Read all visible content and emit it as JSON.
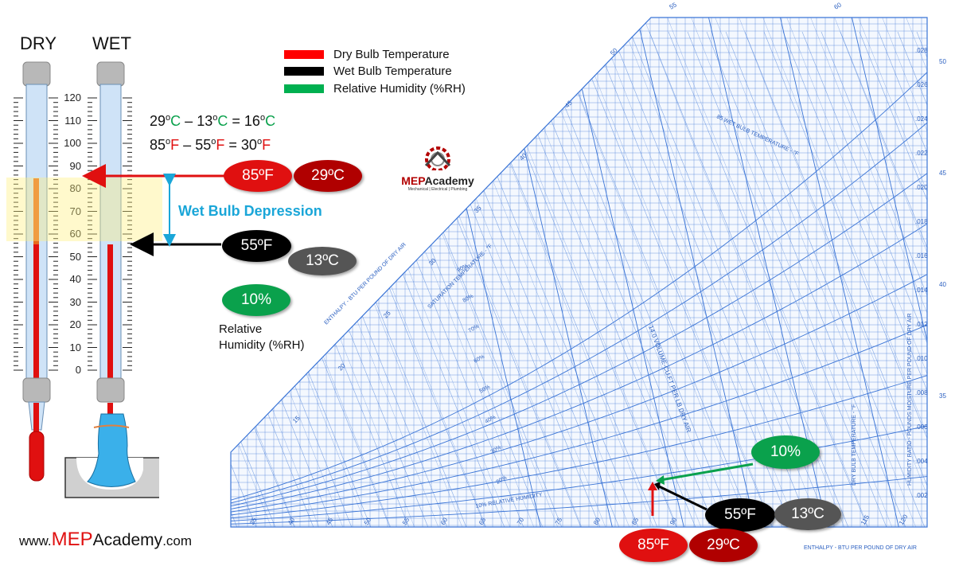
{
  "thermometers": {
    "dry_label": "DRY",
    "wet_label": "WET",
    "scale": [
      "120",
      "110",
      "100",
      "90",
      "80",
      "70",
      "60",
      "50",
      "40",
      "30",
      "20",
      "10",
      "0"
    ],
    "dry_reading_f": 85,
    "wet_reading_f": 55
  },
  "legend": {
    "dry": {
      "label": "Dry Bulb Temperature",
      "color": "#ff0000"
    },
    "wet": {
      "label": "Wet Bulb Temperature",
      "color": "#000000"
    },
    "rh": {
      "label": "Relative Humidity (%RH)",
      "color": "#00b050"
    }
  },
  "equations": {
    "celsius": {
      "a": "29",
      "b": "13",
      "result": "16",
      "unit": "o",
      "unit_letter": "C",
      "minus": "–",
      "equals": "="
    },
    "fahrenheit": {
      "a": "85",
      "b": "55",
      "result": "30",
      "unit": "o",
      "unit_letter": "F",
      "minus": "–",
      "equals": "="
    }
  },
  "badges": {
    "dry_f": "85ºF",
    "dry_c": "29ºC",
    "wet_f": "55ºF",
    "wet_c": "13ºC",
    "rh": "10%"
  },
  "wet_bulb_depression_label": "Wet Bulb Depression",
  "rh_caption_line1": "Relative",
  "rh_caption_line2": "Humidity (%RH)",
  "logo": {
    "name_prefix": "MEP",
    "name_suffix": "Academy",
    "tagline": "Mechanical | Electrical | Plumbing"
  },
  "footer": {
    "prefix": "www.",
    "brand": "MEP",
    "brand_rest": "Academy",
    "suffix": ".com"
  },
  "psychro_chart": {
    "top_labels": [
      "55",
      "60"
    ],
    "left_labels": [
      "50",
      "45",
      "40",
      "35",
      "30",
      "25",
      "20",
      "15"
    ],
    "right_labels": [
      ".028",
      ".026",
      ".024",
      ".022",
      ".020",
      ".018",
      ".016",
      ".014",
      ".012",
      ".010",
      ".008",
      ".006",
      ".004",
      ".002"
    ],
    "right_temp_labels": [
      "50",
      "45",
      "40",
      "35"
    ],
    "bottom_labels": [
      "35",
      "40",
      "45",
      "50",
      "55",
      "60",
      "65",
      "70",
      "75",
      "80",
      "85",
      "90",
      "95",
      "100",
      "105",
      "110",
      "115",
      "120"
    ],
    "enthalpy_label": "ENTHALPY - BTU PER POUND OF DRY AIR",
    "enthalpy_left_label": "ENTHALPY - BTU PER POUND OF DRY AIR",
    "saturation_label": "SATURATION TEMPERATURE - °F",
    "wet_bulb_label": "85 WET BULB TEMPERATURE - °F",
    "volume_label": "14.0 VOLUME-CU.FT PER LB DRY AIR",
    "humidity_ratio_label": "HUMIDITY RATIO - POUNDS MOISTURE PER POUND OF DRY AIR",
    "dry_bulb_label": "DRY BULB TEMPERATURE - °F",
    "rh_10_label": "10% RELATIVE HUMIDITY",
    "rh_labels": [
      "20%",
      "30%",
      "40%",
      "50%",
      "60%",
      "70%",
      "80%",
      "90%"
    ],
    "line_color": "#3a74d6"
  }
}
